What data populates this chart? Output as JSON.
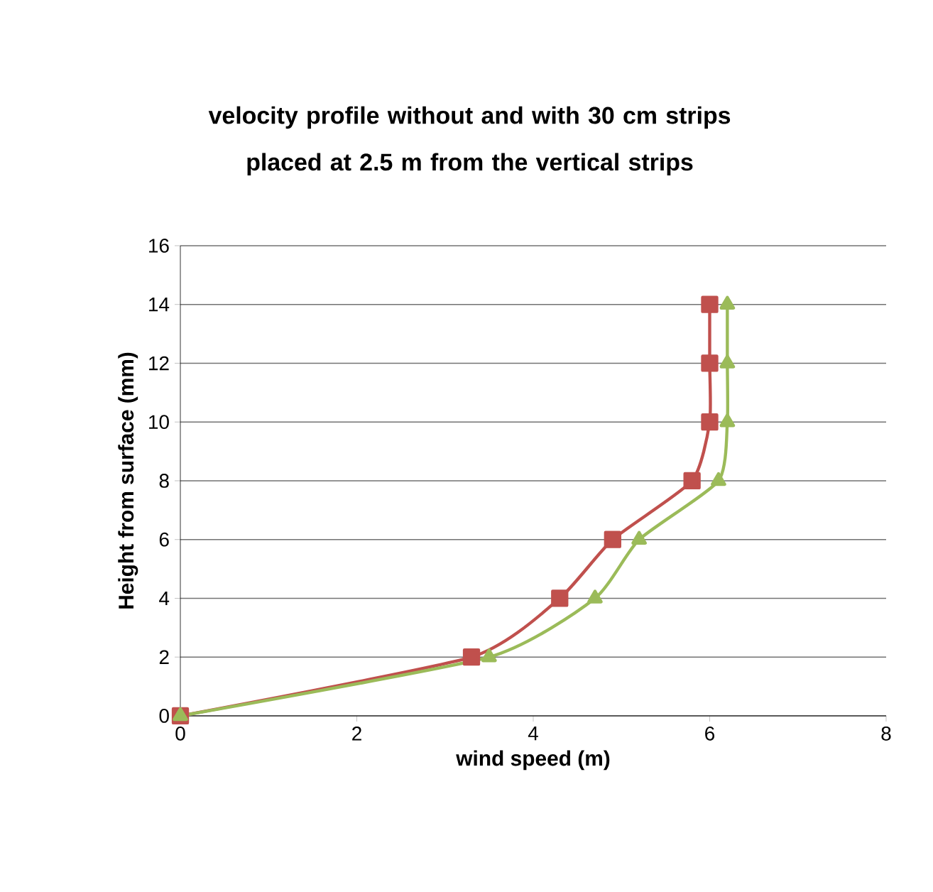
{
  "chart_data": {
    "type": "line",
    "title": "velocity profile without and with 30 cm strips placed at 2.5 m from the vertical  strips",
    "xlabel": "wind speed   (m)",
    "ylabel": "Height from surface (mm)",
    "series": [
      {
        "color": "#c0504d",
        "marker": "square",
        "x": [
          0,
          3.3,
          4.3,
          4.9,
          5.8,
          6.0,
          6.0,
          6.0
        ],
        "values": [
          0,
          2,
          4,
          6,
          8,
          10,
          12,
          14
        ]
      },
      {
        "color": "#9bbb59",
        "marker": "triangle",
        "x": [
          0,
          3.5,
          4.7,
          5.2,
          6.1,
          6.2,
          6.2,
          6.2
        ],
        "values": [
          0,
          2,
          4,
          6,
          8,
          10,
          12,
          14
        ]
      }
    ],
    "xlim": [
      0,
      8
    ],
    "xticks": [
      0,
      2,
      4,
      6,
      8
    ],
    "ylim": [
      0,
      16
    ],
    "yticks": [
      0,
      2,
      4,
      6,
      8,
      10,
      12,
      14,
      16
    ],
    "grid": "y"
  }
}
